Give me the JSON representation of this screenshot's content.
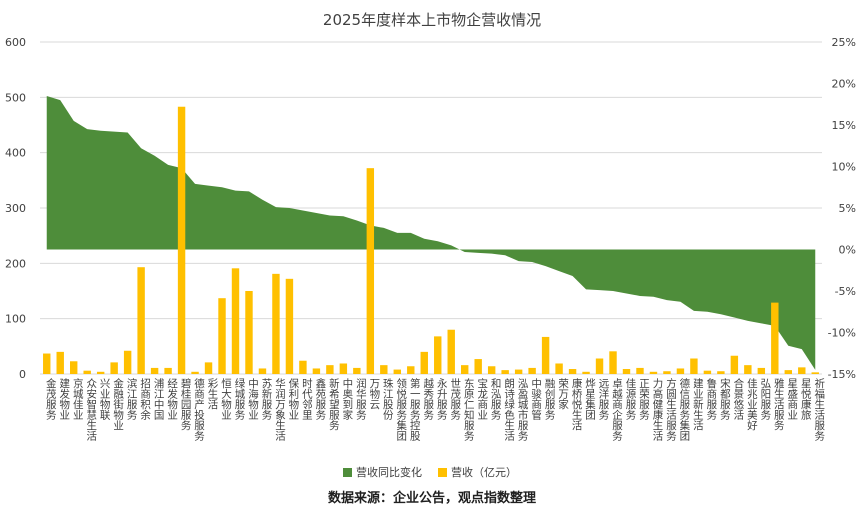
{
  "title": "2025年度样本上市物企营收情况",
  "source": "数据来源：企业公告，观点指数整理",
  "colors": {
    "area": "#4e8d3a",
    "bar": "#ffc000",
    "grid": "#d9d9d9",
    "text": "#404040"
  },
  "chart_data": {
    "type": "bar",
    "title": "2025年度样本上市物企营收情况",
    "categories": [
      "金茂服务",
      "建发物业",
      "京城佳业",
      "众安智慧生活",
      "兴业物联",
      "金融街物业",
      "滨江服务",
      "招商积余",
      "浦江中国",
      "经发物业",
      "碧桂园服务",
      "德商产投服务",
      "彩生活",
      "恒大物业",
      "绿城服务",
      "中海物业",
      "苏新服务",
      "华润万象生活",
      "保利物业",
      "时代邻里",
      "鑫苑服务",
      "新希望服务",
      "中奥到家",
      "润华服务",
      "万物云",
      "珠江股份",
      "领悦服务集团",
      "第一服务控股",
      "越秀服务",
      "永升服务",
      "世茂服务",
      "东原仁知服务",
      "宝龙商业",
      "和泓服务",
      "朗诗绿色生活",
      "泓盈城市服务",
      "中骏商管",
      "融创服务",
      "荣万家",
      "康桥悦生活",
      "烨星集团",
      "远洋服务",
      "卓越商企服务",
      "佳源服务",
      "正荣服务",
      "力高健康生活",
      "方圆生活服务",
      "德信服务集团",
      "建业新生活",
      "鲁商服务",
      "宋都服务",
      "合景悠活",
      "佳兆业美好",
      "弘阳服务",
      "雅生活服务",
      "星盛商业",
      "星悦康旅",
      "祈福生活服务"
    ],
    "series": [
      {
        "name": "营收同比变化",
        "type": "area",
        "axis": "right",
        "unit": "%",
        "values": [
          18.5,
          18.0,
          15.5,
          14.5,
          14.3,
          14.2,
          14.1,
          12.2,
          11.3,
          10.2,
          9.8,
          7.9,
          7.7,
          7.5,
          7.1,
          7.0,
          6.0,
          5.1,
          5.0,
          4.7,
          4.4,
          4.1,
          4.0,
          3.5,
          2.9,
          2.6,
          2.0,
          2.0,
          1.3,
          1.0,
          0.5,
          -0.3,
          -0.4,
          -0.5,
          -0.7,
          -1.4,
          -1.5,
          -2.0,
          -2.6,
          -3.2,
          -4.8,
          -4.9,
          -5.0,
          -5.3,
          -5.6,
          -5.7,
          -6.1,
          -6.3,
          -7.4,
          -7.5,
          -7.8,
          -8.2,
          -8.6,
          -8.9,
          -9.2,
          -11.6,
          -12.0,
          -14.5
        ]
      },
      {
        "name": "营收（亿元）",
        "type": "bar",
        "axis": "left",
        "values": [
          37,
          40,
          23,
          6,
          4,
          21,
          42,
          193,
          11,
          11,
          483,
          4,
          21,
          137,
          191,
          150,
          10,
          181,
          172,
          24,
          10,
          16,
          19,
          11,
          372,
          16,
          8,
          14,
          40,
          68,
          80,
          16,
          27,
          14,
          7,
          8,
          11,
          67,
          19,
          9,
          4,
          28,
          41,
          9,
          11,
          4,
          5,
          10,
          28,
          6,
          5,
          33,
          16,
          11,
          129,
          7,
          12,
          3
        ]
      }
    ],
    "y_left": {
      "min": 0,
      "max": 600,
      "ticks": [
        "0",
        "100",
        "200",
        "300",
        "400",
        "500",
        "600"
      ]
    },
    "y_right": {
      "min": -15,
      "max": 25,
      "ticks": [
        "-15%",
        "-10%",
        "-5%",
        "0%",
        "5%",
        "10%",
        "15%",
        "20%",
        "25%"
      ]
    },
    "grid": true,
    "legend_position": "bottom"
  }
}
